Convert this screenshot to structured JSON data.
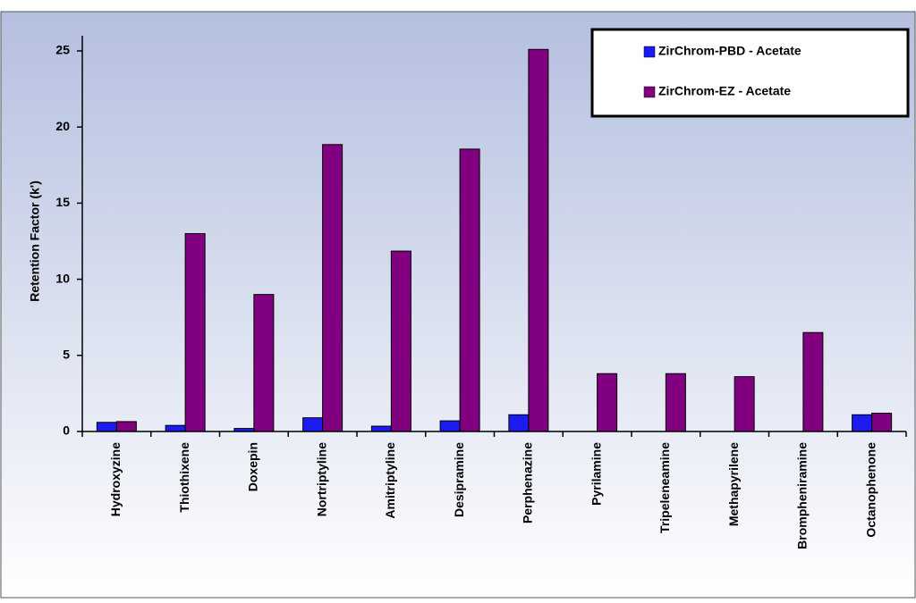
{
  "chart_data": {
    "type": "bar",
    "y_label": "Retention Factor (k')",
    "categories": [
      "Hydroxyzine",
      "Thiothixene",
      "Doxepin",
      "Nortriptyline",
      "Amitriptyline",
      "Desipramine",
      "Perphenazine",
      "Pyrilamine",
      "Tripeleneamine",
      "Methapyrilene",
      "Brompheniramine",
      "Octanophenone"
    ],
    "series": [
      {
        "name": "ZirChrom-PBD - Acetate",
        "color": "#1c1cf0",
        "values": [
          0.6,
          0.4,
          0.2,
          0.9,
          0.35,
          0.7,
          1.1,
          0,
          0,
          0,
          0,
          1.1
        ]
      },
      {
        "name": "ZirChrom-EZ - Acetate",
        "color": "#800080",
        "values": [
          0.65,
          13.0,
          9.0,
          18.85,
          11.85,
          18.55,
          25.1,
          3.8,
          3.8,
          3.6,
          6.5,
          1.2
        ]
      }
    ],
    "ylim": [
      0,
      25
    ],
    "yticks": [
      0,
      5,
      10,
      15,
      20,
      25
    ],
    "legend": "top-right"
  }
}
